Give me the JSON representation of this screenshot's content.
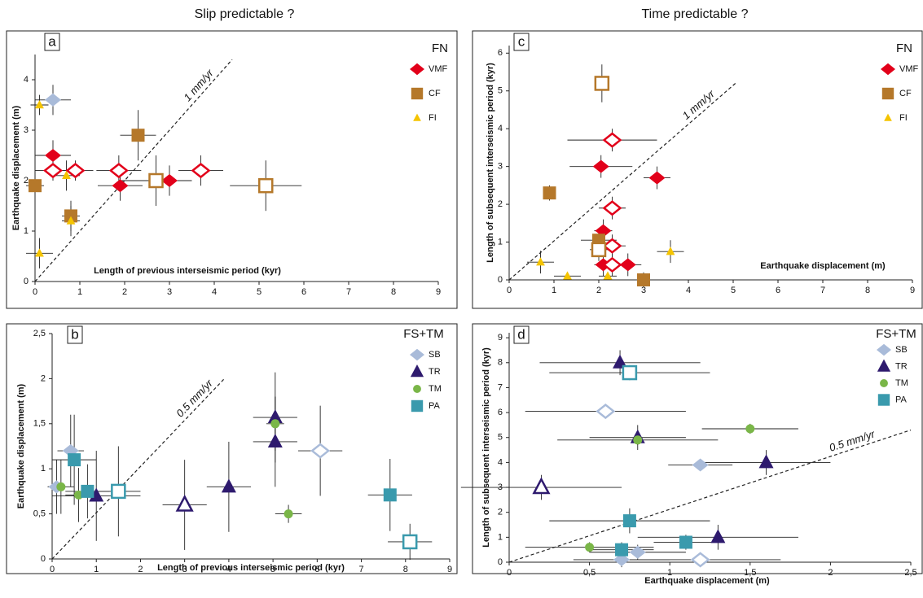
{
  "headers": [
    "Slip predictable ?",
    "Time predictable ?"
  ],
  "chart_data": [
    {
      "type": "scatter",
      "panel": "a",
      "legend_title": "FN",
      "xlabel": "Length of previous interseismic period (kyr)",
      "ylabel": "Earthquake displacement (m)",
      "xlim": [
        0,
        9
      ],
      "ylim": [
        0,
        4.5
      ],
      "xticks": [
        0,
        1,
        2,
        3,
        4,
        5,
        6,
        7,
        8,
        9
      ],
      "yticks": [
        0,
        1,
        2,
        3,
        4
      ],
      "rate_line": {
        "label": "1 mm/yr",
        "x": [
          0,
          4.4
        ],
        "y": [
          0,
          4.4
        ]
      },
      "series": [
        {
          "name": "VMF",
          "color": "#e2001a",
          "marker": "diamond",
          "x": [
            0.4,
            1.9,
            3.0,
            0.4,
            0.9,
            1.87,
            3.7
          ],
          "values": [
            2.5,
            1.9,
            2.0,
            2.2,
            2.2,
            2.2,
            2.2
          ],
          "xerr": [
            0.4,
            0.5,
            0.5,
            0.4,
            0.4,
            0.5,
            0.5
          ],
          "yerr": [
            0.3,
            0.3,
            0.3,
            0.2,
            0.2,
            0.3,
            0.3
          ],
          "hollow": [
            false,
            false,
            false,
            true,
            true,
            true,
            true
          ]
        },
        {
          "name": "CF",
          "color": "#b5782a",
          "marker": "square",
          "x": [
            0,
            0.8,
            2.3,
            2.7,
            5.15
          ],
          "values": [
            1.9,
            1.3,
            2.9,
            2.0,
            1.9
          ],
          "xerr": [
            0.2,
            0.2,
            0.4,
            0.8,
            0.8
          ],
          "yerr": [
            0.4,
            0.3,
            0.5,
            0.5,
            0.5
          ],
          "hollow": [
            false,
            false,
            false,
            true,
            true
          ]
        },
        {
          "name": "FI",
          "color": "#f5c400",
          "marker": "small-triangle",
          "x": [
            0.1,
            0.1,
            0.7,
            0.8
          ],
          "values": [
            3.5,
            0.56,
            2.1,
            1.2
          ],
          "xerr": [
            0.2,
            0.3,
            0.3,
            0.2
          ],
          "yerr": [
            0.2,
            0.3,
            0.3,
            0.3
          ],
          "hollow": [
            false,
            false,
            false,
            false
          ]
        },
        {
          "color": "#a9bbd9",
          "marker": "diamond",
          "x": [
            0.4
          ],
          "values": [
            3.6
          ],
          "xerr": [
            0.4
          ],
          "yerr": [
            0.3
          ],
          "hollow": [
            false
          ]
        }
      ]
    },
    {
      "type": "scatter",
      "panel": "b",
      "legend_title": "FS+TM",
      "xlabel": "Length of previous interseismic period (kyr)",
      "ylabel": "Earthquake displacement (m)",
      "xlim": [
        0,
        9
      ],
      "ylim": [
        0,
        2.5
      ],
      "xticks": [
        0,
        1,
        2,
        3,
        4,
        5,
        6,
        7,
        8,
        9
      ],
      "yticks": [
        0,
        {
          "value": 0.5,
          "label": "0,5"
        },
        1,
        {
          "value": 1.5,
          "label": "1,5"
        },
        2,
        {
          "value": 2.5,
          "label": "2,5"
        }
      ],
      "rate_line": {
        "label": "0.5 mm/yr",
        "x": [
          0,
          3.9
        ],
        "y": [
          0,
          2.0
        ]
      },
      "series": [
        {
          "name": "SB",
          "color": "#a9bbd9",
          "marker": "diamond",
          "x": [
            0.42,
            0.1,
            6.07
          ],
          "values": [
            1.2,
            0.8,
            1.2
          ],
          "xerr": [
            0.3,
            0.2,
            0.5
          ],
          "yerr": [
            0.4,
            0.3,
            0.5
          ],
          "hollow": [
            false,
            false,
            true
          ]
        },
        {
          "name": "TR",
          "color": "#2e1a6e",
          "marker": "triangle",
          "x": [
            1.0,
            4.0,
            5.05,
            5.05,
            3.0
          ],
          "values": [
            0.7,
            0.8,
            1.57,
            1.3,
            0.6
          ],
          "xerr": [
            1.0,
            0.5,
            0.5,
            0.5,
            0.5
          ],
          "yerr": [
            0.5,
            0.5,
            0.5,
            0.5,
            0.5
          ],
          "hollow": [
            false,
            false,
            false,
            false,
            true
          ]
        },
        {
          "name": "TM",
          "color": "#7ab648",
          "marker": "circle",
          "x": [
            0.2,
            0.6,
            5.05,
            5.35
          ],
          "values": [
            0.8,
            0.71,
            1.5,
            0.5
          ],
          "xerr": [
            0.3,
            0.3,
            0.2,
            0.3
          ],
          "yerr": [
            0.3,
            0.3,
            0.3,
            0.1
          ],
          "hollow": [
            false,
            false,
            false,
            false
          ]
        },
        {
          "name": "PA",
          "color": "#3a9aad",
          "marker": "square",
          "x": [
            0.5,
            0.8,
            7.65,
            1.5,
            8.1
          ],
          "values": [
            1.1,
            0.75,
            0.71,
            0.75,
            0.19
          ],
          "xerr": [
            0.5,
            0.5,
            0.5,
            0.5,
            0.5
          ],
          "yerr": [
            0.5,
            0.3,
            0.4,
            0.5,
            0.2
          ],
          "hollow": [
            false,
            false,
            false,
            true,
            true
          ]
        }
      ]
    },
    {
      "type": "scatter",
      "panel": "c",
      "legend_title": "FN",
      "xlabel": "Earthquake displacement (m)",
      "ylabel": "Length of subsequent interseismic period (kyr)",
      "xlim": [
        0,
        9
      ],
      "ylim": [
        0,
        6.2
      ],
      "xticks": [
        0,
        1,
        2,
        3,
        4,
        5,
        6,
        7,
        8,
        9
      ],
      "yticks": [
        0,
        1,
        2,
        3,
        4,
        5,
        6
      ],
      "rate_line": {
        "label": "1 mm/yr",
        "x": [
          0,
          5.05
        ],
        "y": [
          0,
          5.2
        ]
      },
      "series": [
        {
          "name": "VMF",
          "color": "#e2001a",
          "marker": "diamond",
          "x": [
            2.05,
            3.3,
            2.1,
            2.1,
            2.65,
            2.3,
            2.3,
            2.3,
            2.3
          ],
          "values": [
            3.0,
            2.7,
            1.3,
            0.4,
            0.4,
            3.7,
            1.9,
            0.9,
            0.4
          ],
          "xerr": [
            0.7,
            0.3,
            0.2,
            0.2,
            0.3,
            1.0,
            0.3,
            0.3,
            0.3
          ],
          "yerr": [
            0.3,
            0.3,
            0.3,
            0.3,
            0.3,
            0.3,
            0.3,
            0.3,
            0.3
          ],
          "hollow": [
            false,
            false,
            false,
            false,
            false,
            true,
            true,
            true,
            true
          ]
        },
        {
          "name": "CF",
          "color": "#b5782a",
          "marker": "square",
          "x": [
            0.9,
            2.0,
            3.0,
            2.07,
            2.0
          ],
          "values": [
            2.3,
            1.05,
            0,
            5.2,
            0.8
          ],
          "xerr": [
            0.1,
            0.4,
            0.3,
            0.1,
            0.2
          ],
          "yerr": [
            0.2,
            0.3,
            0.2,
            0.5,
            0.3
          ],
          "hollow": [
            false,
            false,
            false,
            true,
            true
          ]
        },
        {
          "name": "FI",
          "color": "#f5c400",
          "marker": "small-triangle",
          "x": [
            0.7,
            1.3,
            2.2,
            3.6
          ],
          "values": [
            0.47,
            0.1,
            0.1,
            0.75
          ],
          "xerr": [
            0.3,
            0.3,
            0.2,
            0.3
          ],
          "yerr": [
            0.3,
            0.1,
            0.1,
            0.3
          ],
          "hollow": [
            false,
            false,
            false,
            false
          ]
        }
      ]
    },
    {
      "type": "scatter",
      "panel": "d",
      "legend_title": "FS+TM",
      "xlabel": "Earthquake displacement (m)",
      "ylabel": "Length of subsequent interseismic period (kyr)",
      "xlim": [
        0,
        2.5
      ],
      "ylim": [
        0,
        9.2
      ],
      "xticks": [
        0,
        {
          "value": 0.5,
          "label": "0,5"
        },
        1,
        {
          "value": 1.5,
          "label": "1,5"
        },
        2,
        {
          "value": 2.5,
          "label": "2,5"
        }
      ],
      "yticks": [
        0,
        1,
        2,
        3,
        4,
        5,
        6,
        7,
        8,
        9
      ],
      "rate_line": {
        "label": "0.5 mm/yr",
        "x": [
          0,
          2.5
        ],
        "y": [
          0,
          5.3
        ]
      },
      "series": [
        {
          "name": "SB",
          "color": "#a9bbd9",
          "marker": "diamond",
          "x": [
            1.19,
            0.7,
            0.8,
            0.6,
            1.19
          ],
          "values": [
            3.9,
            0.1,
            0.4,
            6.05,
            0.1
          ],
          "xerr": [
            0.2,
            0.3,
            0.3,
            0.5,
            0.5
          ],
          "yerr": [
            0.2,
            0.3,
            0.3,
            0.2,
            0.2
          ],
          "hollow": [
            false,
            false,
            false,
            true,
            true
          ]
        },
        {
          "name": "TR",
          "color": "#2e1a6e",
          "marker": "triangle",
          "x": [
            0.69,
            0.8,
            1.6,
            1.3,
            0.2
          ],
          "values": [
            8.0,
            5.0,
            4.0,
            1.0,
            3.0
          ],
          "xerr": [
            0.5,
            0.3,
            0.4,
            0.5,
            0.5
          ],
          "yerr": [
            0.5,
            0.5,
            0.5,
            0.5,
            0.5
          ],
          "hollow": [
            false,
            false,
            false,
            false,
            true
          ]
        },
        {
          "name": "TM",
          "color": "#7ab648",
          "marker": "circle",
          "x": [
            0.8,
            1.5,
            0.5
          ],
          "values": [
            4.9,
            5.35,
            0.6
          ],
          "xerr": [
            0.5,
            0.3,
            0.4
          ],
          "yerr": [
            0.2,
            0.2,
            0.2
          ],
          "hollow": [
            false,
            false,
            false
          ]
        },
        {
          "name": "PA",
          "color": "#3a9aad",
          "marker": "square",
          "x": [
            0.75,
            1.1,
            0.7,
            0.75
          ],
          "values": [
            1.66,
            0.8,
            0.5,
            7.6
          ],
          "xerr": [
            0.5,
            0.2,
            0.2,
            0.5
          ],
          "yerr": [
            0.5,
            0.3,
            0.3,
            0.3
          ],
          "hollow": [
            false,
            false,
            false,
            true
          ]
        }
      ]
    }
  ]
}
